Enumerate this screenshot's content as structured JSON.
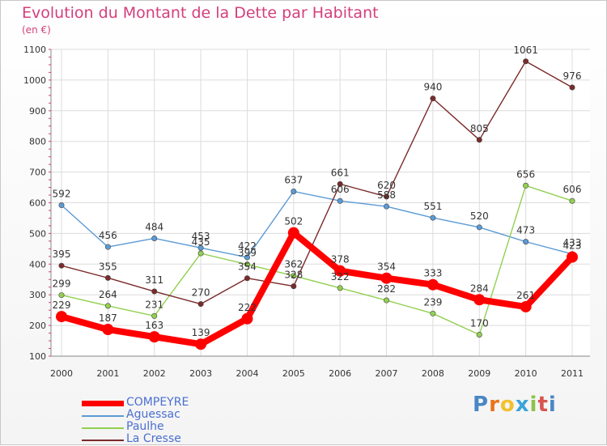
{
  "header": {
    "title": "Evolution du Montant de la Dette par Habitant",
    "subtitle": "(en €)"
  },
  "chart_data": {
    "type": "line",
    "title": "Evolution du Montant de la Dette par Habitant",
    "ylabel": "(en €)",
    "xlabel": "",
    "ylim": [
      100,
      1100
    ],
    "yticks": [
      "100",
      "200",
      "300",
      "400",
      "500",
      "600",
      "700",
      "800",
      "900",
      "1000",
      "1100"
    ],
    "x": [
      "2000",
      "2001",
      "2002",
      "2003",
      "2004",
      "2005",
      "2006",
      "2007",
      "2008",
      "2009",
      "2010",
      "2011"
    ],
    "grid": true,
    "legend_position": "bottom-left",
    "series": [
      {
        "name": "COMPEYRE",
        "color": "#ff0000",
        "bold": true,
        "values": [
          229,
          187,
          163,
          139,
          222,
          502,
          378,
          354,
          333,
          284,
          261,
          423
        ]
      },
      {
        "name": "Aguessac",
        "color": "#5b9bd5",
        "values": [
          592,
          456,
          484,
          453,
          422,
          637,
          606,
          588,
          551,
          520,
          473,
          433
        ]
      },
      {
        "name": "Paulhe",
        "color": "#92d050",
        "values": [
          299,
          264,
          231,
          435,
          399,
          362,
          322,
          282,
          239,
          170,
          656,
          606
        ]
      },
      {
        "name": "La Cresse",
        "color": "#7b2a2a",
        "values": [
          395,
          355,
          311,
          270,
          354,
          328,
          661,
          620,
          940,
          805,
          1061,
          976
        ]
      }
    ]
  },
  "logo": {
    "letters": [
      "P",
      "r",
      "o",
      "x",
      "i",
      "t",
      "i"
    ],
    "colors": [
      "#4a86c5",
      "#e8731c",
      "#f2c12e",
      "#3aa5d8",
      "#8bc34a",
      "#d9534f",
      "#4a86c5"
    ]
  }
}
